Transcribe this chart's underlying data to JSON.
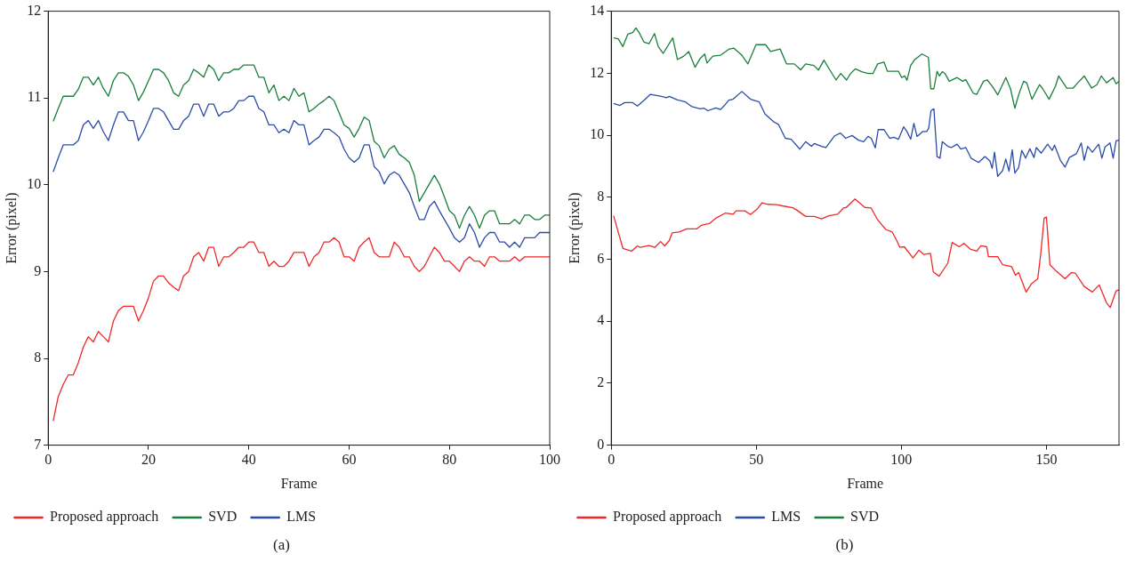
{
  "chart_data": [
    {
      "type": "line",
      "xlabel": "Frame",
      "ylabel": "Error (pixel)",
      "annotations": [
        "(a)"
      ],
      "xlim": [
        0,
        100
      ],
      "xticks": [
        0,
        20,
        40,
        60,
        80,
        100
      ],
      "ylim": [
        7,
        12
      ],
      "yticks": [
        7,
        8,
        9,
        10,
        11,
        12
      ],
      "grid": false,
      "legend": "bottom",
      "line_style": "solid",
      "x": [
        1,
        2,
        3,
        4,
        5,
        6,
        7,
        8,
        9,
        10,
        11,
        12,
        13,
        14,
        15,
        16,
        17,
        18,
        19,
        20,
        21,
        22,
        23,
        24,
        25,
        26,
        27,
        28,
        29,
        30,
        31,
        32,
        33,
        34,
        35,
        36,
        37,
        38,
        39,
        40,
        41,
        42,
        43,
        44,
        45,
        46,
        47,
        48,
        49,
        50,
        51,
        52,
        53,
        54,
        55,
        56,
        57,
        58,
        59,
        60,
        61,
        62,
        63,
        64,
        65,
        66,
        67,
        68,
        69,
        70,
        71,
        72,
        73,
        74,
        75,
        76,
        77,
        78,
        79,
        80,
        81,
        82,
        83,
        84,
        85,
        86,
        87,
        88,
        89,
        90,
        91,
        92,
        93,
        94,
        95,
        96,
        97,
        98,
        99,
        100
      ],
      "series": [
        {
          "name": "Proposed approach",
          "color": "#f02828",
          "values": [
            7.28,
            7.56,
            7.7,
            7.81,
            7.81,
            7.95,
            8.13,
            8.25,
            8.19,
            8.31,
            8.25,
            8.19,
            8.43,
            8.55,
            8.6,
            8.6,
            8.6,
            8.43,
            8.55,
            8.7,
            8.89,
            8.95,
            8.95,
            8.87,
            8.82,
            8.78,
            8.95,
            9.0,
            9.17,
            9.22,
            9.12,
            9.28,
            9.28,
            9.06,
            9.17,
            9.17,
            9.22,
            9.28,
            9.28,
            9.34,
            9.34,
            9.22,
            9.22,
            9.06,
            9.12,
            9.06,
            9.06,
            9.12,
            9.22,
            9.22,
            9.22,
            9.06,
            9.17,
            9.22,
            9.34,
            9.34,
            9.39,
            9.34,
            9.17,
            9.17,
            9.12,
            9.28,
            9.34,
            9.39,
            9.22,
            9.17,
            9.17,
            9.17,
            9.34,
            9.28,
            9.17,
            9.17,
            9.06,
            9.0,
            9.06,
            9.17,
            9.28,
            9.22,
            9.12,
            9.12,
            9.06,
            9.0,
            9.12,
            9.17,
            9.12,
            9.12,
            9.06,
            9.17,
            9.17,
            9.12,
            9.12,
            9.12,
            9.17,
            9.12,
            9.17,
            9.17,
            9.17,
            9.17,
            9.17,
            9.17
          ]
        },
        {
          "name": "SVD",
          "color": "#1a7f3c",
          "values": [
            10.73,
            10.88,
            11.02,
            11.02,
            11.02,
            11.1,
            11.24,
            11.24,
            11.15,
            11.24,
            11.11,
            11.02,
            11.2,
            11.29,
            11.29,
            11.25,
            11.15,
            10.97,
            11.07,
            11.2,
            11.33,
            11.33,
            11.29,
            11.2,
            11.06,
            11.02,
            11.15,
            11.2,
            11.33,
            11.29,
            11.24,
            11.38,
            11.33,
            11.2,
            11.29,
            11.29,
            11.33,
            11.33,
            11.38,
            11.38,
            11.38,
            11.24,
            11.24,
            11.06,
            11.15,
            10.97,
            11.02,
            10.97,
            11.11,
            11.02,
            11.06,
            10.84,
            10.88,
            10.93,
            10.97,
            11.02,
            10.97,
            10.83,
            10.69,
            10.65,
            10.55,
            10.65,
            10.78,
            10.74,
            10.5,
            10.45,
            10.31,
            10.41,
            10.45,
            10.35,
            10.31,
            10.26,
            10.11,
            9.81,
            9.91,
            10.01,
            10.11,
            10.01,
            9.86,
            9.7,
            9.65,
            9.5,
            9.65,
            9.75,
            9.65,
            9.5,
            9.65,
            9.7,
            9.7,
            9.55,
            9.55,
            9.55,
            9.6,
            9.55,
            9.65,
            9.65,
            9.6,
            9.6,
            9.65,
            9.65
          ]
        },
        {
          "name": "LMS",
          "color": "#2a4ba8",
          "values": [
            10.15,
            10.31,
            10.46,
            10.46,
            10.46,
            10.51,
            10.69,
            10.74,
            10.65,
            10.74,
            10.61,
            10.51,
            10.69,
            10.84,
            10.84,
            10.74,
            10.74,
            10.51,
            10.61,
            10.74,
            10.88,
            10.88,
            10.84,
            10.74,
            10.64,
            10.64,
            10.74,
            10.79,
            10.93,
            10.93,
            10.79,
            10.93,
            10.93,
            10.79,
            10.84,
            10.84,
            10.88,
            10.97,
            10.97,
            11.02,
            11.02,
            10.88,
            10.84,
            10.69,
            10.69,
            10.6,
            10.64,
            10.6,
            10.74,
            10.69,
            10.69,
            10.46,
            10.51,
            10.55,
            10.64,
            10.64,
            10.6,
            10.55,
            10.41,
            10.31,
            10.26,
            10.31,
            10.46,
            10.46,
            10.21,
            10.15,
            10.01,
            10.11,
            10.15,
            10.11,
            10.01,
            9.91,
            9.75,
            9.6,
            9.6,
            9.75,
            9.81,
            9.7,
            9.6,
            9.5,
            9.39,
            9.34,
            9.39,
            9.55,
            9.45,
            9.28,
            9.39,
            9.45,
            9.45,
            9.34,
            9.34,
            9.28,
            9.34,
            9.28,
            9.39,
            9.39,
            9.39,
            9.45,
            9.45,
            9.45
          ]
        }
      ]
    },
    {
      "type": "line",
      "xlabel": "Frame",
      "ylabel": "Error (pixel)",
      "annotations": [
        "(b)"
      ],
      "xlim": [
        0,
        175
      ],
      "xticks": [
        0,
        50,
        100,
        150
      ],
      "ylim": [
        0,
        14
      ],
      "yticks": [
        0,
        2,
        4,
        6,
        8,
        10,
        12,
        14
      ],
      "grid": false,
      "legend": "bottom",
      "line_style": "solid",
      "series": [
        {
          "name": "Proposed approach",
          "color": "#f02828",
          "x": [
            0.8,
            4,
            7,
            9,
            10,
            13,
            15,
            17,
            18.4,
            20,
            21,
            23.4,
            26,
            29.5,
            31,
            34,
            36,
            39.4,
            42,
            43,
            46,
            48,
            50.4,
            52,
            54,
            57,
            59,
            62.6,
            64,
            67,
            70,
            72.5,
            75,
            78,
            80,
            81,
            84,
            87.4,
            89.6,
            91.8,
            94.6,
            96.8,
            98.4,
            99.5,
            101,
            104,
            106,
            107.8,
            110,
            111,
            113,
            116,
            117.5,
            119.9,
            121.6,
            123.8,
            126,
            127.4,
            129.4,
            130,
            133.2,
            134.9,
            138,
            139.3,
            140.4,
            143,
            144.8,
            147,
            148,
            149.2,
            150,
            151.2,
            153,
            156.4,
            158.6,
            160,
            163,
            165.8,
            168.2,
            170.7,
            172,
            174,
            175
          ],
          "values": [
            7.4,
            6.35,
            6.26,
            6.43,
            6.38,
            6.44,
            6.38,
            6.57,
            6.43,
            6.6,
            6.85,
            6.88,
            6.98,
            6.98,
            7.09,
            7.16,
            7.32,
            7.49,
            7.45,
            7.56,
            7.56,
            7.44,
            7.63,
            7.82,
            7.77,
            7.76,
            7.72,
            7.66,
            7.58,
            7.38,
            7.38,
            7.3,
            7.4,
            7.45,
            7.65,
            7.67,
            7.94,
            7.67,
            7.65,
            7.27,
            6.96,
            6.88,
            6.6,
            6.38,
            6.4,
            6.04,
            6.29,
            6.15,
            6.19,
            5.59,
            5.45,
            5.87,
            6.54,
            6.4,
            6.51,
            6.32,
            6.26,
            6.43,
            6.4,
            6.08,
            6.08,
            5.82,
            5.76,
            5.48,
            5.57,
            4.94,
            5.2,
            5.37,
            6.15,
            7.32,
            7.36,
            5.82,
            5.65,
            5.37,
            5.57,
            5.54,
            5.12,
            4.94,
            5.17,
            4.59,
            4.44,
            4.98,
            5.01
          ]
        },
        {
          "name": "LMS",
          "color": "#2a4ba8",
          "x": [
            0.8,
            3,
            4.6,
            7.4,
            9,
            11.3,
            13.5,
            17.3,
            19,
            20,
            22.8,
            25.6,
            27.8,
            30.6,
            32,
            33.3,
            36,
            37.7,
            39,
            40.5,
            42,
            45,
            48,
            51,
            53,
            56,
            57.6,
            60,
            62,
            65,
            67,
            69,
            70,
            72.5,
            74,
            77,
            79,
            80.8,
            83,
            85.2,
            87,
            88.5,
            89.6,
            91,
            92,
            94,
            96,
            97.4,
            99,
            100.8,
            101.9,
            103.2,
            104.3,
            105.4,
            107.4,
            108.7,
            109.4,
            110.2,
            111.2,
            112.3,
            113.3,
            114.1,
            116,
            117.2,
            119.2,
            120.5,
            122.2,
            124,
            126.6,
            128.8,
            130.5,
            131.3,
            132.1,
            133.2,
            134.9,
            136,
            137.1,
            138.2,
            139.1,
            140.4,
            141.5,
            142.8,
            144.3,
            145.7,
            146.5,
            148.2,
            150.4,
            152,
            152.8,
            154.8,
            156.4,
            157.9,
            160.3,
            162,
            163,
            164.2,
            165.8,
            168,
            169.1,
            170.2,
            171.9,
            173,
            174,
            175
          ],
          "values": [
            11.02,
            10.96,
            11.05,
            11.05,
            10.94,
            11.13,
            11.32,
            11.25,
            11.21,
            11.25,
            11.14,
            11.07,
            10.92,
            10.85,
            10.87,
            10.79,
            10.88,
            10.83,
            10.96,
            11.13,
            11.16,
            11.41,
            11.16,
            11.07,
            10.68,
            10.43,
            10.35,
            9.9,
            9.87,
            9.55,
            9.79,
            9.64,
            9.73,
            9.64,
            9.6,
            9.98,
            10.07,
            9.9,
            9.99,
            9.84,
            9.79,
            9.96,
            9.9,
            9.59,
            10.18,
            10.18,
            9.9,
            9.93,
            9.87,
            10.27,
            10.12,
            9.87,
            10.38,
            9.96,
            10.12,
            10.12,
            10.22,
            10.79,
            10.85,
            9.31,
            9.26,
            9.79,
            9.64,
            9.6,
            9.71,
            9.55,
            9.6,
            9.26,
            9.12,
            9.31,
            9.17,
            8.93,
            9.45,
            8.67,
            8.86,
            9.23,
            8.84,
            9.53,
            8.78,
            8.95,
            9.51,
            9.26,
            9.56,
            9.28,
            9.6,
            9.42,
            9.71,
            9.51,
            9.68,
            9.19,
            8.97,
            9.28,
            9.4,
            9.75,
            9.19,
            9.64,
            9.45,
            9.71,
            9.26,
            9.62,
            9.75,
            9.26,
            9.82,
            9.84
          ]
        },
        {
          "name": "SVD",
          "color": "#1a7f3c",
          "x": [
            0.8,
            2.4,
            4,
            5.7,
            7.4,
            8.5,
            9.6,
            11.3,
            13,
            14.9,
            16.2,
            17.9,
            21.2,
            22.8,
            25,
            26.7,
            28.9,
            30.6,
            32.2,
            33,
            35,
            37.7,
            40.5,
            42.2,
            45,
            47.1,
            49.9,
            53.2,
            54.9,
            58.2,
            60.4,
            63.1,
            65.3,
            67,
            69.8,
            71.4,
            73.3,
            75.3,
            77.5,
            79.1,
            81.1,
            82.5,
            84.1,
            86.3,
            88.5,
            90.2,
            91.8,
            94,
            95.2,
            97.4,
            99,
            100.1,
            101.2,
            101.9,
            103.2,
            104.6,
            107.1,
            109.3,
            110.1,
            111.2,
            112.3,
            113.1,
            114.1,
            115,
            116.5,
            119.2,
            121.1,
            122.2,
            124.8,
            126,
            128.3,
            129.6,
            131.3,
            133.2,
            136,
            137.6,
            139.1,
            140.4,
            142.1,
            143.2,
            145,
            147.6,
            148.7,
            150.9,
            153.1,
            154.2,
            157,
            159.2,
            160.8,
            163,
            165.6,
            167.4,
            168.9,
            170.7,
            173,
            174,
            175
          ],
          "values": [
            13.14,
            13.11,
            12.86,
            13.26,
            13.31,
            13.46,
            13.31,
            13.0,
            12.95,
            13.28,
            12.86,
            12.64,
            13.14,
            12.44,
            12.55,
            12.7,
            12.19,
            12.47,
            12.62,
            12.33,
            12.55,
            12.58,
            12.77,
            12.81,
            12.58,
            12.3,
            12.92,
            12.92,
            12.7,
            12.78,
            12.3,
            12.3,
            12.11,
            12.3,
            12.25,
            12.1,
            12.42,
            12.11,
            11.78,
            11.99,
            11.78,
            11.99,
            12.14,
            12.05,
            11.99,
            11.99,
            12.3,
            12.36,
            12.06,
            12.06,
            12.06,
            11.86,
            11.91,
            11.77,
            12.25,
            12.44,
            12.62,
            12.51,
            11.5,
            11.5,
            12.06,
            11.91,
            12.05,
            11.99,
            11.74,
            11.86,
            11.74,
            11.79,
            11.35,
            11.32,
            11.74,
            11.78,
            11.58,
            11.3,
            11.86,
            11.5,
            10.87,
            11.3,
            11.74,
            11.69,
            11.16,
            11.63,
            11.5,
            11.16,
            11.58,
            11.91,
            11.52,
            11.52,
            11.69,
            11.91,
            11.52,
            11.63,
            11.91,
            11.69,
            11.86,
            11.66,
            11.74
          ]
        }
      ]
    }
  ]
}
